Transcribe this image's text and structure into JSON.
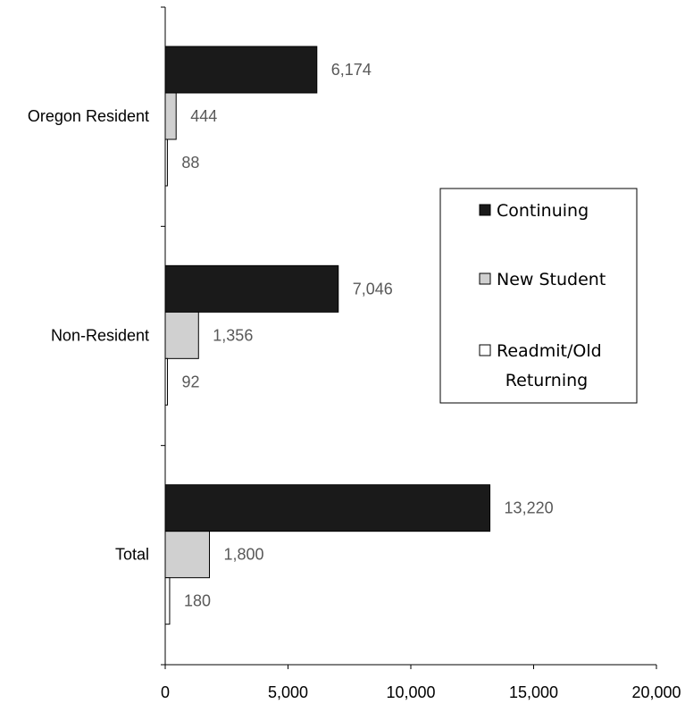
{
  "chart_data": {
    "type": "bar",
    "orientation": "horizontal",
    "categories": [
      "Oregon Resident",
      "Non-Resident",
      "Total"
    ],
    "series": [
      {
        "name": "Continuing",
        "values": [
          6174,
          7046,
          13220
        ],
        "labels": [
          "6,174",
          "7,046",
          "13,220"
        ],
        "color": "#1a1a1a"
      },
      {
        "name": "New Student",
        "values": [
          444,
          1356,
          1800
        ],
        "labels": [
          "444",
          "1,356",
          "1,800"
        ],
        "color": "#d0d0d0"
      },
      {
        "name": "Readmit/Old Returning",
        "legend_lines": [
          "Readmit/Old",
          "Returning"
        ],
        "values": [
          88,
          92,
          180
        ],
        "labels": [
          "88",
          "92",
          "180"
        ],
        "color": "#ffffff"
      }
    ],
    "xlim": [
      0,
      20000
    ],
    "xticks": [
      0,
      5000,
      10000,
      15000,
      20000
    ],
    "xtick_labels": [
      "0",
      "5,000",
      "10,000",
      "15,000",
      "20,000"
    ],
    "legend_position": "right",
    "grid": false
  }
}
